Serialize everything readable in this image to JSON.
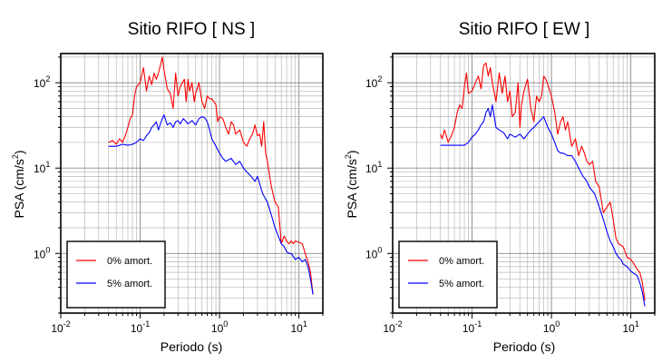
{
  "chart_data": [
    {
      "type": "line",
      "title": "Sitio RIFO [ NS ]",
      "xlabel": "Periodo (s)",
      "ylabel_main": "PSA (cm/s",
      "ylabel_sup": "2",
      "ylabel_close": ")",
      "x_scale": "log",
      "y_scale": "log",
      "xlim": [
        0.01,
        20
      ],
      "ylim": [
        0.2,
        220
      ],
      "grid": true,
      "legend_position": "bottom-left",
      "x_ticks": [
        {
          "base": "10",
          "exp": "-2",
          "value": 0.01
        },
        {
          "base": "10",
          "exp": "-1",
          "value": 0.1
        },
        {
          "base": "10",
          "exp": "0",
          "value": 1
        },
        {
          "base": "10",
          "exp": "1",
          "value": 10
        }
      ],
      "y_ticks": [
        {
          "base": "10",
          "exp": "0",
          "value": 1
        },
        {
          "base": "10",
          "exp": "1",
          "value": 10
        },
        {
          "base": "10",
          "exp": "2",
          "value": 100
        }
      ],
      "series": [
        {
          "name": "0% amort.",
          "color": "#ff0000",
          "x": [
            0.04,
            0.045,
            0.05,
            0.055,
            0.06,
            0.065,
            0.07,
            0.075,
            0.08,
            0.085,
            0.09,
            0.1,
            0.11,
            0.12,
            0.13,
            0.14,
            0.15,
            0.16,
            0.17,
            0.18,
            0.19,
            0.2,
            0.22,
            0.24,
            0.26,
            0.28,
            0.3,
            0.32,
            0.34,
            0.36,
            0.38,
            0.4,
            0.42,
            0.45,
            0.48,
            0.5,
            0.55,
            0.6,
            0.65,
            0.7,
            0.75,
            0.8,
            0.85,
            0.9,
            0.95,
            1.0,
            1.1,
            1.2,
            1.3,
            1.4,
            1.5,
            1.6,
            1.8,
            2.0,
            2.2,
            2.4,
            2.6,
            2.8,
            3.0,
            3.2,
            3.4,
            3.6,
            3.8,
            4.0,
            4.5,
            5.0,
            5.5,
            6.0,
            6.5,
            7.0,
            7.5,
            8.0,
            8.5,
            9.0,
            10.0,
            11.0,
            12.0,
            13.0,
            14.0,
            15.0
          ],
          "y": [
            20,
            21,
            19,
            22,
            20,
            24,
            30,
            38,
            42,
            70,
            90,
            100,
            150,
            80,
            120,
            95,
            130,
            110,
            130,
            160,
            200,
            140,
            85,
            75,
            50,
            130,
            70,
            90,
            100,
            110,
            60,
            110,
            80,
            100,
            60,
            75,
            100,
            60,
            50,
            70,
            65,
            65,
            60,
            55,
            35,
            40,
            38,
            30,
            25,
            35,
            32,
            25,
            28,
            20,
            18,
            22,
            25,
            32,
            24,
            25,
            18,
            35,
            15,
            12,
            6,
            4,
            3.5,
            1.3,
            1.6,
            1.4,
            1.3,
            1.4,
            1.3,
            1.4,
            1.35,
            1.3,
            1.0,
            0.8,
            0.6,
            0.33
          ]
        },
        {
          "name": "5% amort.",
          "color": "#0000ff",
          "x": [
            0.04,
            0.05,
            0.06,
            0.07,
            0.08,
            0.09,
            0.1,
            0.11,
            0.12,
            0.13,
            0.14,
            0.15,
            0.16,
            0.17,
            0.18,
            0.19,
            0.2,
            0.22,
            0.24,
            0.26,
            0.28,
            0.3,
            0.32,
            0.35,
            0.38,
            0.4,
            0.45,
            0.5,
            0.55,
            0.6,
            0.65,
            0.7,
            0.75,
            0.8,
            0.9,
            1.0,
            1.1,
            1.2,
            1.4,
            1.6,
            1.8,
            2.0,
            2.2,
            2.5,
            2.8,
            3.0,
            3.5,
            4.0,
            4.5,
            5.0,
            5.5,
            6.0,
            6.5,
            7.0,
            7.5,
            8.0,
            9.0,
            10.0,
            11.0,
            12.0,
            13.0,
            14.0,
            15.0
          ],
          "y": [
            18,
            18,
            19,
            18.5,
            19,
            20,
            22,
            21,
            24,
            26,
            30,
            32,
            35,
            28,
            33,
            38,
            42,
            32,
            34,
            30,
            35,
            36,
            33,
            38,
            35,
            33,
            36,
            32,
            38,
            40,
            39,
            35,
            28,
            22,
            18,
            15,
            13,
            12,
            13,
            11,
            12,
            10,
            9,
            8,
            7,
            8,
            5,
            4,
            2.8,
            2.0,
            1.6,
            1.3,
            1.2,
            1.05,
            1.0,
            1.0,
            0.85,
            0.9,
            0.8,
            0.85,
            0.7,
            0.5,
            0.33
          ]
        }
      ]
    },
    {
      "type": "line",
      "title": "Sitio RIFO [ EW ]",
      "xlabel": "Periodo (s)",
      "ylabel_main": "PSA (cm/s",
      "ylabel_sup": "2",
      "ylabel_close": ")",
      "x_scale": "log",
      "y_scale": "log",
      "xlim": [
        0.01,
        20
      ],
      "ylim": [
        0.2,
        220
      ],
      "grid": true,
      "legend_position": "bottom-left",
      "x_ticks": [
        {
          "base": "10",
          "exp": "-2",
          "value": 0.01
        },
        {
          "base": "10",
          "exp": "-1",
          "value": 0.1
        },
        {
          "base": "10",
          "exp": "0",
          "value": 1
        },
        {
          "base": "10",
          "exp": "1",
          "value": 10
        }
      ],
      "y_ticks": [
        {
          "base": "10",
          "exp": "0",
          "value": 1
        },
        {
          "base": "10",
          "exp": "1",
          "value": 10
        },
        {
          "base": "10",
          "exp": "2",
          "value": 100
        }
      ],
      "series": [
        {
          "name": "0% amort.",
          "color": "#ff0000",
          "x": [
            0.04,
            0.042,
            0.045,
            0.05,
            0.055,
            0.06,
            0.065,
            0.07,
            0.075,
            0.08,
            0.085,
            0.09,
            0.1,
            0.11,
            0.12,
            0.13,
            0.14,
            0.15,
            0.16,
            0.17,
            0.18,
            0.2,
            0.22,
            0.24,
            0.26,
            0.28,
            0.3,
            0.32,
            0.35,
            0.38,
            0.4,
            0.42,
            0.45,
            0.5,
            0.55,
            0.6,
            0.65,
            0.7,
            0.75,
            0.8,
            0.85,
            0.9,
            1.0,
            1.1,
            1.2,
            1.3,
            1.4,
            1.5,
            1.6,
            1.8,
            2.0,
            2.2,
            2.4,
            2.6,
            2.8,
            3.0,
            3.3,
            3.6,
            4.0,
            4.5,
            5.0,
            5.5,
            6.0,
            6.5,
            7.0,
            8.0,
            9.0,
            10.0,
            11.0,
            12.0,
            13.0,
            14.0,
            15.0
          ],
          "y": [
            25,
            22,
            28,
            20,
            24,
            30,
            45,
            55,
            50,
            90,
            130,
            75,
            80,
            100,
            120,
            85,
            160,
            170,
            120,
            150,
            100,
            60,
            130,
            75,
            120,
            60,
            80,
            40,
            45,
            100,
            30,
            55,
            80,
            110,
            50,
            35,
            70,
            60,
            70,
            120,
            110,
            95,
            70,
            45,
            25,
            35,
            40,
            28,
            35,
            18,
            22,
            14,
            18,
            15,
            12,
            11,
            12,
            7,
            6,
            3,
            3.5,
            4.0,
            2.5,
            1.5,
            1.3,
            1.2,
            0.9,
            0.85,
            0.75,
            0.65,
            0.6,
            0.45,
            0.28
          ]
        },
        {
          "name": "5% amort.",
          "color": "#0000ff",
          "x": [
            0.04,
            0.05,
            0.06,
            0.07,
            0.08,
            0.09,
            0.1,
            0.11,
            0.12,
            0.13,
            0.14,
            0.15,
            0.16,
            0.17,
            0.18,
            0.2,
            0.22,
            0.25,
            0.28,
            0.3,
            0.35,
            0.4,
            0.45,
            0.5,
            0.55,
            0.6,
            0.7,
            0.8,
            0.9,
            1.0,
            1.1,
            1.2,
            1.3,
            1.4,
            1.6,
            1.8,
            2.0,
            2.2,
            2.5,
            2.8,
            3.0,
            3.5,
            4.0,
            4.5,
            5.0,
            5.5,
            6.0,
            6.5,
            7.0,
            7.5,
            8.0,
            9.0,
            10.0,
            11.0,
            12.0,
            13.0,
            14.0,
            15.0
          ],
          "y": [
            18.5,
            18.5,
            18.5,
            18.5,
            18.5,
            20,
            23,
            25,
            28,
            32,
            35,
            45,
            50,
            40,
            55,
            30,
            28,
            26,
            22,
            25,
            23,
            25,
            22,
            25,
            28,
            30,
            35,
            40,
            30,
            25,
            20,
            16,
            15,
            15,
            14,
            14,
            12,
            10,
            8,
            7,
            6,
            5,
            3.5,
            2.5,
            1.8,
            1.4,
            1.2,
            1.0,
            0.9,
            0.85,
            0.75,
            0.7,
            0.62,
            0.58,
            0.55,
            0.45,
            0.35,
            0.24
          ]
        }
      ]
    }
  ]
}
